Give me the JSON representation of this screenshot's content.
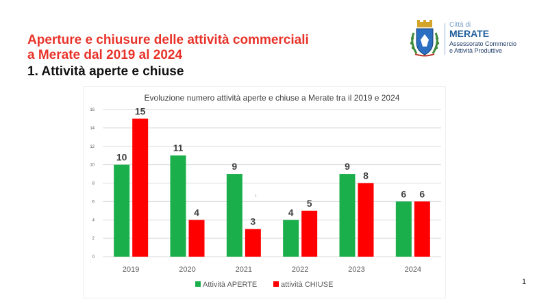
{
  "header": {
    "title_line1": "Aperture e chiusure delle attività commerciali",
    "title_line2": "a Merate dal 2019 al 2024",
    "subtitle": "1. Attività aperte e chiuse"
  },
  "logo": {
    "small_text": "Città di",
    "city": "MERATE",
    "dept_line1": "Assessorato Commercio",
    "dept_line2": "e Attività Produttive"
  },
  "chart_data": {
    "type": "bar",
    "title": "Evoluzione numero attività aperte e chiuse a Merate tra il 2019 e 2024",
    "categories": [
      "2019",
      "2020",
      "2021",
      "2022",
      "2023",
      "2024"
    ],
    "series": [
      {
        "name": "Attività APERTE",
        "values": [
          10,
          11,
          9,
          4,
          9,
          6
        ],
        "color": "#1aaf4b"
      },
      {
        "name": "attività CHIUSE",
        "values": [
          15,
          4,
          3,
          5,
          8,
          6
        ],
        "color": "#ff0000"
      }
    ],
    "ylim": [
      0,
      16
    ],
    "yticks": [
      "0",
      "2",
      "4",
      "6",
      "8",
      "10",
      "12",
      "14",
      "16"
    ],
    "xlabel": "",
    "ylabel": "",
    "grid": true,
    "legend": "bottom",
    "stray_label": "1"
  },
  "page": {
    "number": "1"
  },
  "colors": {
    "title": "#e8332a",
    "open": "#1aaf4b",
    "closed": "#ff0000",
    "grid": "#d9d9d9"
  }
}
